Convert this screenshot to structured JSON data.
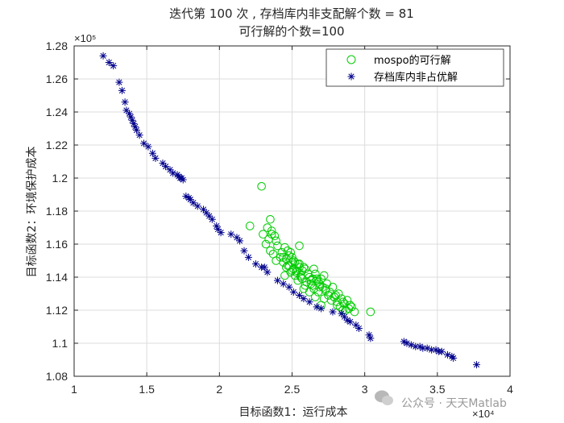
{
  "chart_data": {
    "type": "scatter",
    "title": [
      "迭代第 100 次 , 存档库内非支配解个数 = 81",
      "可行解的个数=100"
    ],
    "xlabel": "目标函数1：运行成本",
    "ylabel": "目标函数2：环境保护成本",
    "x_exponent_label": "×10⁴",
    "y_exponent_label": "×10⁵",
    "x_scale": 10000,
    "y_scale": 100000,
    "xlim": [
      10000,
      40000
    ],
    "ylim": [
      108000,
      128000
    ],
    "xticks": [
      10000,
      15000,
      20000,
      25000,
      30000,
      35000,
      40000
    ],
    "xtick_labels": [
      "1",
      "1.5",
      "2",
      "2.5",
      "3",
      "3.5",
      "4"
    ],
    "yticks": [
      108000,
      110000,
      112000,
      114000,
      116000,
      118000,
      120000,
      122000,
      124000,
      126000,
      128000
    ],
    "ytick_labels": [
      "1.08",
      "1.1",
      "1.12",
      "1.14",
      "1.16",
      "1.18",
      "1.2",
      "1.22",
      "1.24",
      "1.26",
      "1.28"
    ],
    "grid": true,
    "legend_position": "top-right",
    "series": [
      {
        "name": "mospo的可行解",
        "marker": "circle",
        "color": "#00cc00",
        "x": [
          22900,
          22100,
          23000,
          23300,
          23500,
          23600,
          23400,
          23800,
          23900,
          24000,
          23700,
          23200,
          23500,
          24300,
          24500,
          24700,
          24800,
          24600,
          24400,
          24900,
          25000,
          25200,
          25500,
          25700,
          25400,
          25100,
          24800,
          25300,
          25600,
          25900,
          26100,
          26200,
          26400,
          26600,
          26500,
          26800,
          27000,
          27200,
          27400,
          27100,
          26900,
          26700,
          26300,
          25800,
          25500,
          25200,
          25900,
          26500,
          27300,
          27600,
          27800,
          28000,
          28200,
          28400,
          28100,
          27900,
          27500,
          27200,
          26800,
          26400,
          26000,
          25600,
          25300,
          25000,
          24700,
          24400,
          28600,
          28800,
          29000,
          29300,
          30400,
          29100,
          28900,
          28500,
          28300,
          27700,
          27000,
          26600,
          26200,
          25800,
          25400,
          25000,
          24600,
          24200,
          23900,
          26900,
          27500,
          28100,
          28700,
          26300,
          25700,
          24900,
          25500,
          26700,
          27300,
          27900,
          28500,
          25100,
          24500,
          23600
        ],
        "y": [
          119500,
          117100,
          116600,
          117000,
          117500,
          116800,
          116300,
          116500,
          116200,
          115900,
          115400,
          116000,
          115600,
          115500,
          115800,
          115600,
          115300,
          115100,
          114900,
          115500,
          115200,
          114900,
          114600,
          114400,
          114800,
          115000,
          114700,
          114300,
          114100,
          114500,
          114200,
          114000,
          113900,
          114200,
          114500,
          113700,
          113900,
          114100,
          113600,
          113400,
          113600,
          113900,
          113800,
          114600,
          115900,
          114100,
          113500,
          113300,
          113300,
          113100,
          113400,
          112900,
          113000,
          112700,
          112500,
          112800,
          112900,
          112700,
          113100,
          113500,
          113700,
          114000,
          114400,
          114900,
          114700,
          115200,
          112400,
          112600,
          112300,
          111900,
          111900,
          112200,
          112100,
          112500,
          112200,
          112600,
          112300,
          112800,
          113100,
          113300,
          113800,
          114400,
          114600,
          115200,
          115000,
          113400,
          112900,
          112300,
          112000,
          113600,
          113900,
          114300,
          114800,
          113800,
          113200,
          112800,
          112000,
          114500,
          114100,
          116600
        ]
      },
      {
        "name": "存档库内非占优解",
        "marker": "asterisk",
        "color": "#00008b",
        "x": [
          12000,
          12400,
          12700,
          13100,
          13300,
          13500,
          13600,
          13800,
          13900,
          14000,
          14100,
          14200,
          14300,
          14500,
          14800,
          15100,
          15400,
          15600,
          16100,
          16300,
          16600,
          16800,
          17100,
          17200,
          17300,
          17400,
          17500,
          17700,
          17900,
          18000,
          18200,
          18500,
          18900,
          19100,
          19300,
          19500,
          19800,
          19900,
          20100,
          20800,
          21200,
          21400,
          21700,
          22000,
          22500,
          22900,
          23100,
          23300,
          24000,
          24400,
          24800,
          25100,
          25500,
          25800,
          26200,
          26700,
          27000,
          27800,
          28400,
          28600,
          28800,
          29000,
          29400,
          29600,
          30300,
          30400,
          32700,
          32900,
          33200,
          33500,
          33800,
          34000,
          34300,
          34600,
          34900,
          35100,
          35300,
          35700,
          36000,
          36100,
          37700
        ],
        "y": [
          127400,
          127000,
          126800,
          125800,
          125300,
          124600,
          124100,
          123900,
          123700,
          123500,
          123300,
          123100,
          122900,
          122600,
          122100,
          121900,
          121500,
          121200,
          120900,
          120700,
          120500,
          120300,
          120200,
          120100,
          120000,
          120000,
          119900,
          118900,
          118800,
          118700,
          118500,
          118300,
          118100,
          117900,
          117700,
          117500,
          117100,
          116900,
          116700,
          116600,
          116400,
          116200,
          115600,
          115200,
          114800,
          114600,
          114600,
          114300,
          113800,
          113600,
          113400,
          113100,
          112900,
          112700,
          112500,
          112200,
          112100,
          111900,
          111800,
          111600,
          111400,
          111300,
          111100,
          110900,
          110500,
          110300,
          110100,
          110000,
          109900,
          109800,
          109800,
          109700,
          109700,
          109600,
          109600,
          109500,
          109500,
          109300,
          109200,
          109100,
          108700
        ]
      }
    ]
  },
  "watermark": "公众号 · 天天Matlab"
}
